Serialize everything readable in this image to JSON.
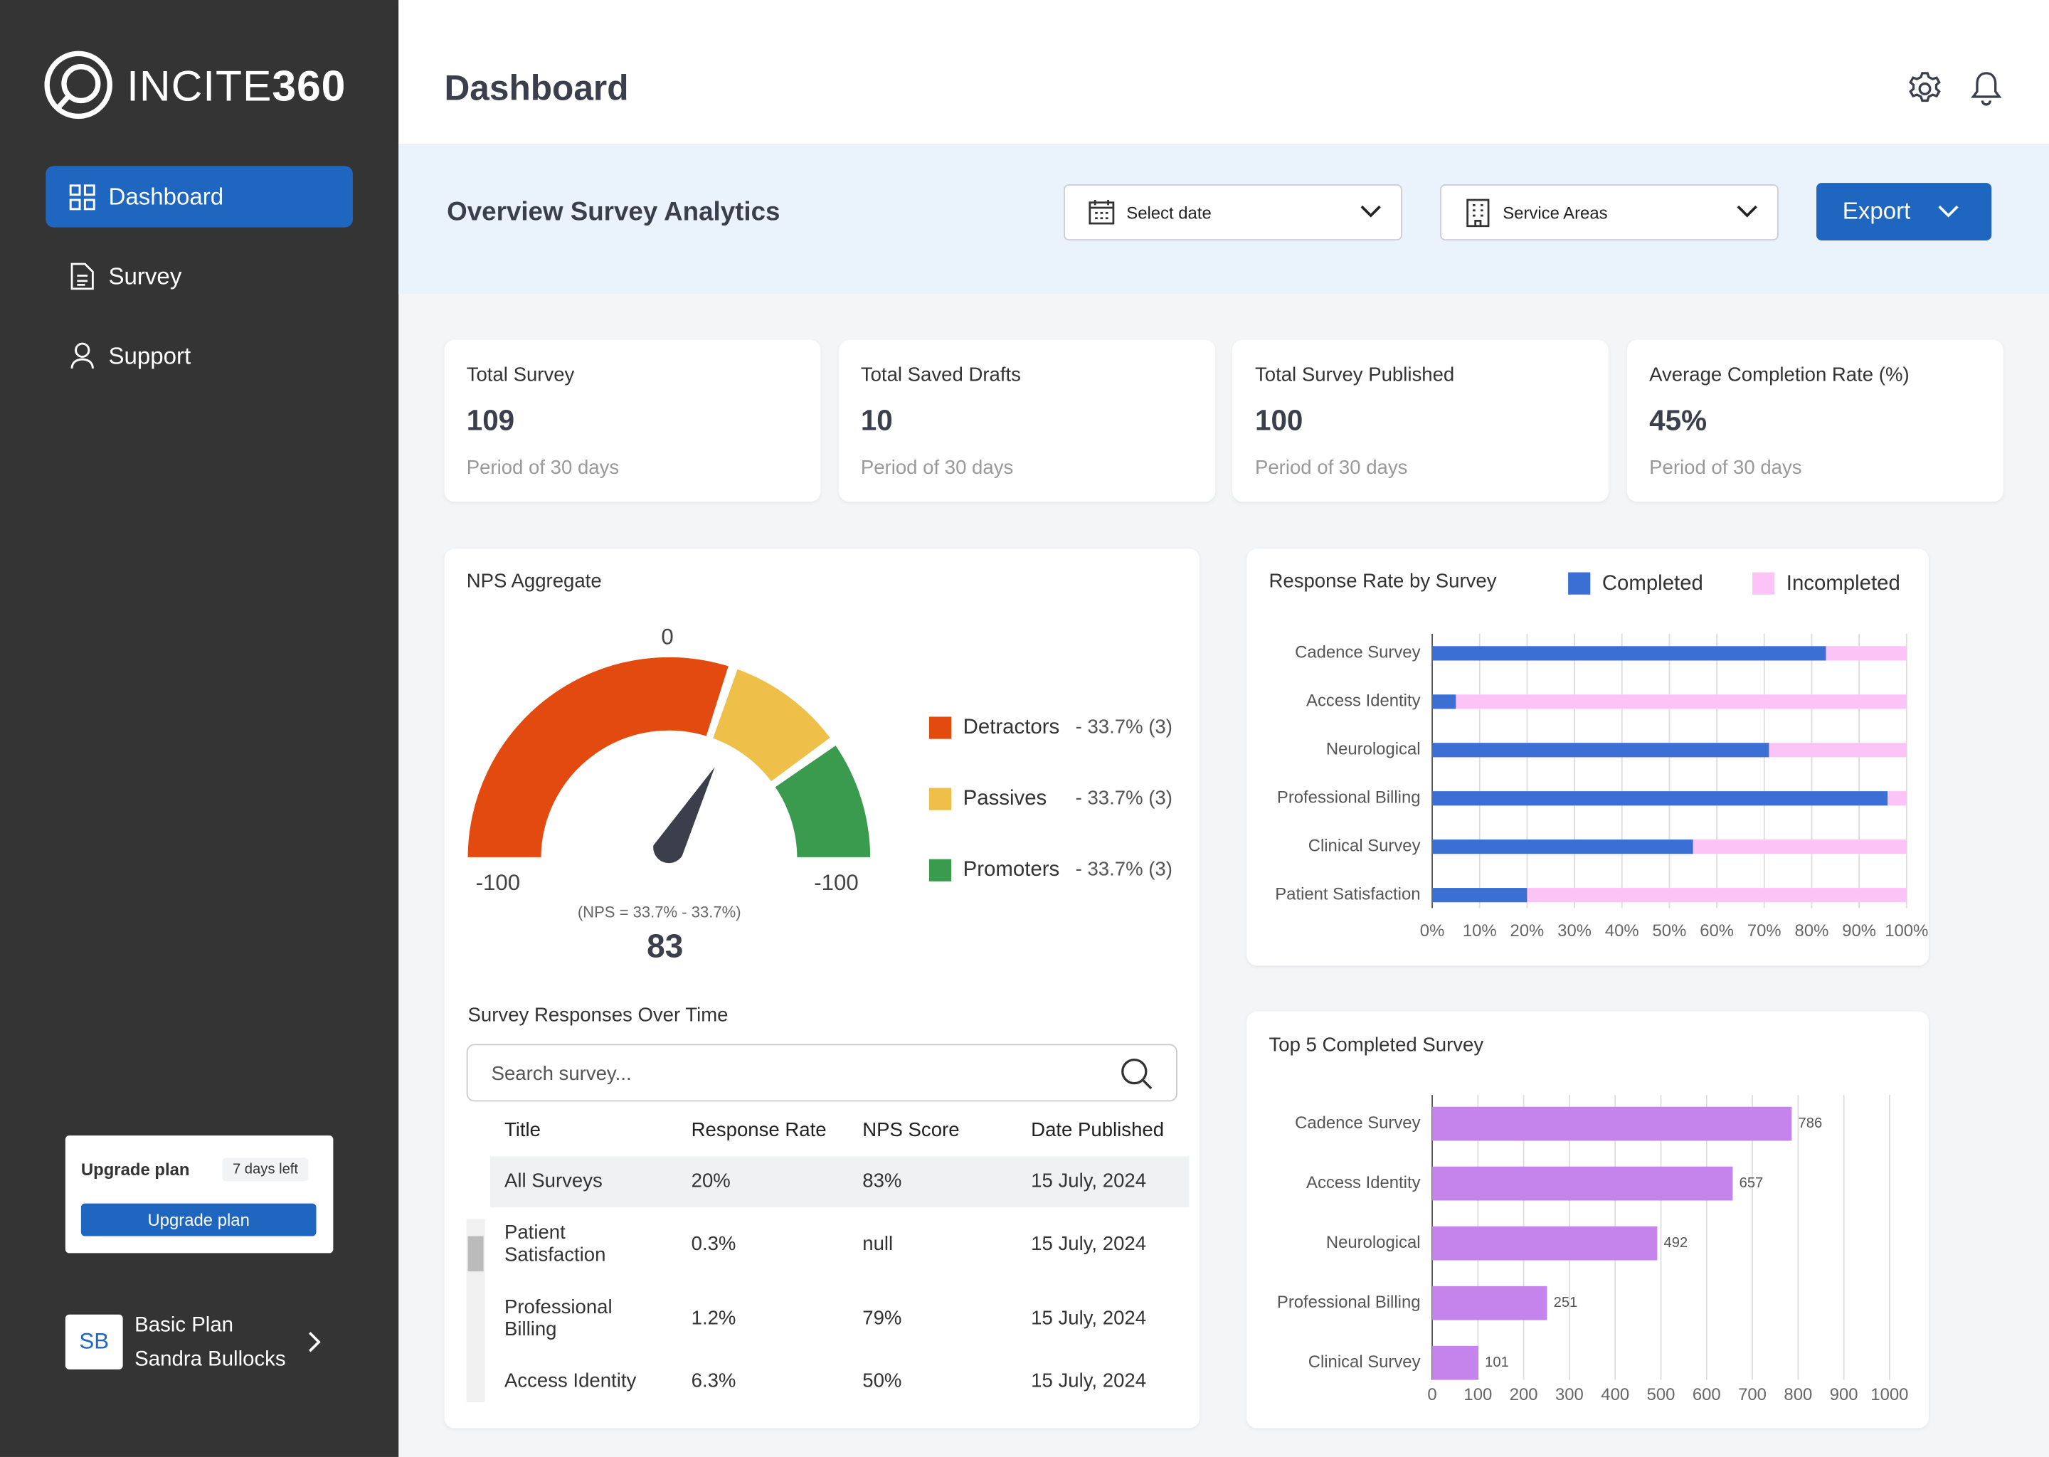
{
  "sidebar": {
    "logo_prefix": "INCITE",
    "logo_suffix": "360",
    "nav": [
      "Dashboard",
      "Survey",
      "Support"
    ],
    "upgrade": {
      "title": "Upgrade plan",
      "badge": "7 days left",
      "button": "Upgrade plan"
    },
    "user": {
      "initials": "SB",
      "plan": "Basic Plan",
      "name": "Sandra Bullocks"
    }
  },
  "header": {
    "title": "Dashboard"
  },
  "toolbar": {
    "title": "Overview Survey Analytics",
    "date": "Select date",
    "areas": "Service Areas",
    "export": "Export"
  },
  "stats": [
    {
      "label": "Total Survey",
      "value": "109",
      "note": "Period of 30 days"
    },
    {
      "label": "Total Saved Drafts",
      "value": "10",
      "note": "Period of 30 days"
    },
    {
      "label": "Total Survey Published",
      "value": "100",
      "note": "Period of 30 days"
    },
    {
      "label": "Average Completion Rate (%)",
      "value": "45%",
      "note": "Period of 30 days"
    }
  ],
  "nps": {
    "title": "NPS Aggregate",
    "scale_top": "0",
    "scale_left": "-100",
    "scale_right": "-100",
    "formula": "(NPS = 33.7% - 33.7%)",
    "score": "83",
    "legend": [
      {
        "name": "Detractors",
        "detail": "- 33.7% (3)",
        "color": "#e24a0f"
      },
      {
        "name": "Passives",
        "detail": "- 33.7% (3)",
        "color": "#eec04a"
      },
      {
        "name": "Promoters",
        "detail": "- 33.7% (3)",
        "color": "#3a9a4e"
      }
    ]
  },
  "responses": {
    "title": "Survey Responses Over Time",
    "search_placeholder": "Search survey...",
    "columns": [
      "Title",
      "Response Rate",
      "NPS Score",
      "Date Published"
    ],
    "rows": [
      [
        "All Surveys",
        "20%",
        "83%",
        "15 July, 2024"
      ],
      [
        "Patient Satisfaction",
        "0.3%",
        "null",
        "15 July, 2024"
      ],
      [
        "Professional Billing",
        "1.2%",
        "79%",
        "15 July, 2024"
      ],
      [
        "Access Identity",
        "6.3%",
        "50%",
        "15 July, 2024"
      ]
    ]
  },
  "chart_data": [
    {
      "type": "bar",
      "orientation": "horizontal",
      "stacked": true,
      "title": "Response Rate by Survey",
      "categories": [
        "Cadence Survey",
        "Access Identity",
        "Neurological",
        "Professional Billing",
        "Clinical Survey",
        "Patient Satisfaction"
      ],
      "series": [
        {
          "name": "Completed",
          "color": "#3b6fd4",
          "values": [
            83,
            5,
            71,
            96,
            55,
            20
          ]
        },
        {
          "name": "Incompleted",
          "color": "#fcc3f6",
          "values": [
            17,
            95,
            29,
            4,
            45,
            80
          ]
        }
      ],
      "xlim": [
        0,
        100
      ],
      "xticks": [
        {
          "value": 0,
          "label": "0%"
        },
        {
          "value": 10,
          "label": "10%"
        },
        {
          "value": 20,
          "label": "20%"
        },
        {
          "value": 30,
          "label": "30%"
        },
        {
          "value": 40,
          "label": "40%"
        },
        {
          "value": 50,
          "label": "50%"
        },
        {
          "value": 60,
          "label": "60%"
        },
        {
          "value": 70,
          "label": "70%"
        },
        {
          "value": 80,
          "label": "80%"
        },
        {
          "value": 90,
          "label": "90%"
        },
        {
          "value": 100,
          "label": "100%"
        }
      ],
      "grid": true
    },
    {
      "type": "bar",
      "orientation": "horizontal",
      "title": "Top 5 Completed Survey",
      "categories": [
        "Cadence Survey",
        "Access Identity",
        "Neurological",
        "Professional Billing",
        "Clinical Survey"
      ],
      "values": [
        786,
        657,
        492,
        251,
        101
      ],
      "color": "#c583ec",
      "xlim": [
        0,
        1000
      ],
      "xticks": [
        0,
        100,
        200,
        300,
        400,
        500,
        600,
        700,
        800,
        900,
        1000
      ],
      "grid": true
    }
  ]
}
